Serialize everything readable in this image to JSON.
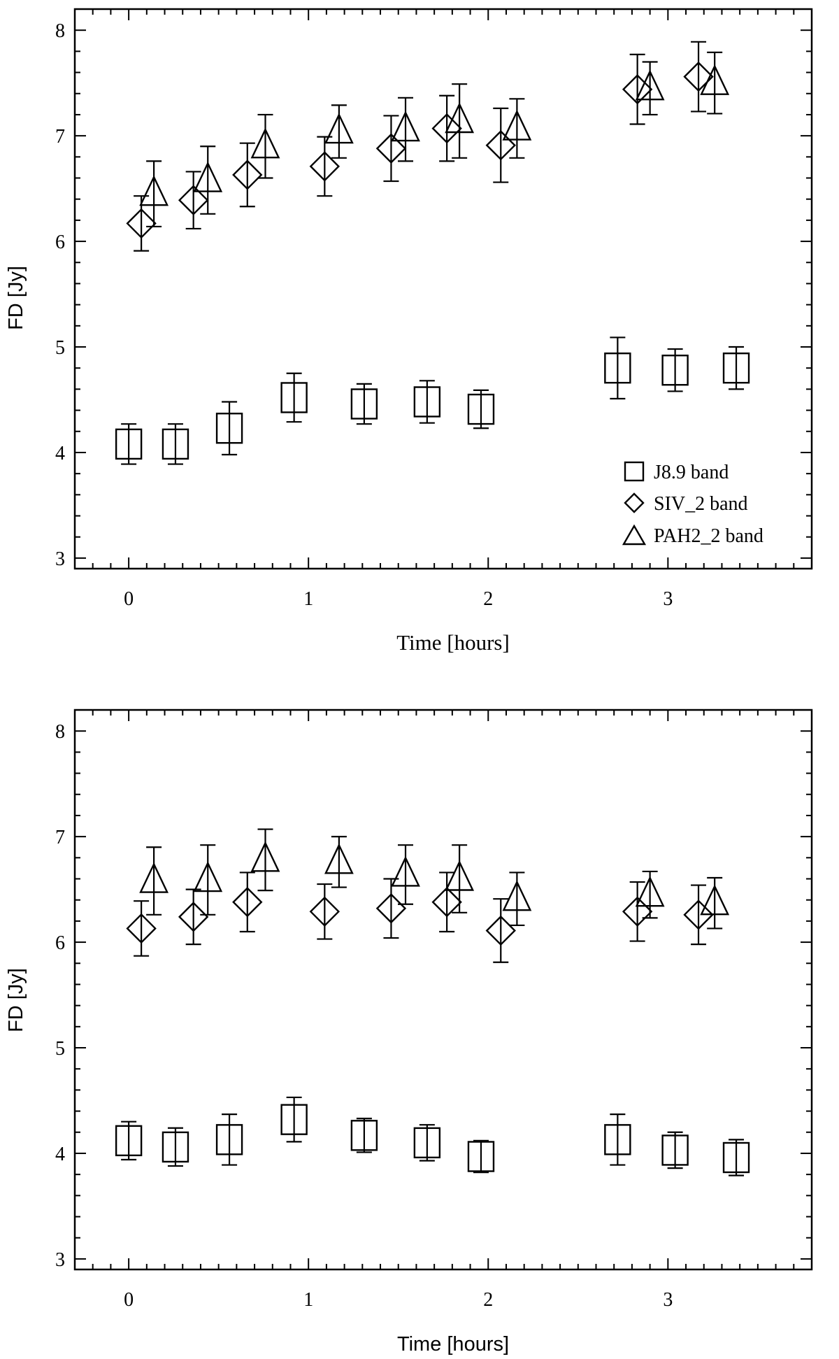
{
  "chart_data": [
    {
      "type": "scatter",
      "xlabel": "Time [hours]",
      "ylabel": "FD [Jy]",
      "xlim": [
        -0.3,
        3.8
      ],
      "ylim": [
        2.9,
        8.2
      ],
      "xticks": [
        "0",
        "1",
        "2",
        "3"
      ],
      "yticks": [
        "3",
        "4",
        "5",
        "6",
        "7",
        "8"
      ],
      "legend": {
        "position": "bottom-right",
        "entries": [
          {
            "marker": "square",
            "label": "J8.9 band"
          },
          {
            "marker": "diamond",
            "label": "SIV_2 band"
          },
          {
            "marker": "triangle",
            "label": "PAH2_2 band"
          }
        ]
      },
      "series": [
        {
          "name": "J8.9 band",
          "marker": "square",
          "x": [
            0.0,
            0.26,
            0.56,
            0.92,
            1.31,
            1.66,
            1.96,
            2.72,
            3.04,
            3.38
          ],
          "y": [
            4.08,
            4.08,
            4.23,
            4.52,
            4.46,
            4.48,
            4.41,
            4.8,
            4.78,
            4.8
          ],
          "err": [
            0.19,
            0.19,
            0.25,
            0.23,
            0.19,
            0.2,
            0.18,
            0.29,
            0.2,
            0.2
          ]
        },
        {
          "name": "SIV_2 band",
          "marker": "diamond",
          "x": [
            0.07,
            0.36,
            0.66,
            1.09,
            1.46,
            1.77,
            2.07,
            2.83,
            3.17
          ],
          "y": [
            6.17,
            6.39,
            6.63,
            6.71,
            6.88,
            7.07,
            6.91,
            7.44,
            7.56
          ],
          "err": [
            0.26,
            0.27,
            0.3,
            0.28,
            0.31,
            0.31,
            0.35,
            0.33,
            0.33
          ]
        },
        {
          "name": "PAH2_2 band",
          "marker": "triangle",
          "x": [
            0.14,
            0.44,
            0.76,
            1.17,
            1.54,
            1.84,
            2.16,
            2.9,
            3.26
          ],
          "y": [
            6.45,
            6.58,
            6.9,
            7.04,
            7.06,
            7.14,
            7.07,
            7.45,
            7.5
          ],
          "err": [
            0.31,
            0.32,
            0.3,
            0.25,
            0.3,
            0.35,
            0.28,
            0.25,
            0.29
          ]
        }
      ]
    },
    {
      "type": "scatter",
      "xlabel": "Time [hours]",
      "ylabel": "FD [Jy]",
      "xlim": [
        -0.3,
        3.8
      ],
      "ylim": [
        2.9,
        8.2
      ],
      "xticks": [
        "0",
        "1",
        "2",
        "3"
      ],
      "yticks": [
        "3",
        "4",
        "5",
        "6",
        "7",
        "8"
      ],
      "series": [
        {
          "name": "J8.9 band",
          "marker": "square",
          "x": [
            0.0,
            0.26,
            0.56,
            0.92,
            1.31,
            1.66,
            1.96,
            2.72,
            3.04,
            3.38
          ],
          "y": [
            4.12,
            4.06,
            4.13,
            4.32,
            4.17,
            4.1,
            3.97,
            4.13,
            4.03,
            3.96
          ],
          "err": [
            0.18,
            0.18,
            0.24,
            0.21,
            0.16,
            0.17,
            0.15,
            0.24,
            0.17,
            0.17
          ]
        },
        {
          "name": "SIV_2 band",
          "marker": "diamond",
          "x": [
            0.07,
            0.36,
            0.66,
            1.09,
            1.46,
            1.77,
            2.07,
            2.83,
            3.17
          ],
          "y": [
            6.13,
            6.24,
            6.38,
            6.29,
            6.32,
            6.38,
            6.11,
            6.29,
            6.26
          ],
          "err": [
            0.26,
            0.26,
            0.28,
            0.26,
            0.28,
            0.28,
            0.3,
            0.28,
            0.28
          ]
        },
        {
          "name": "PAH2_2 band",
          "marker": "triangle",
          "x": [
            0.14,
            0.44,
            0.76,
            1.17,
            1.54,
            1.84,
            2.16,
            2.9,
            3.26
          ],
          "y": [
            6.58,
            6.59,
            6.78,
            6.76,
            6.64,
            6.6,
            6.41,
            6.45,
            6.37
          ],
          "err": [
            0.32,
            0.33,
            0.29,
            0.24,
            0.28,
            0.32,
            0.25,
            0.22,
            0.24
          ]
        }
      ]
    }
  ]
}
